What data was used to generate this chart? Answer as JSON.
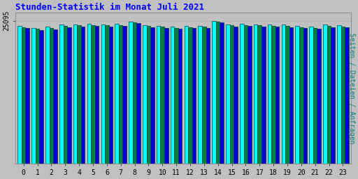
{
  "title": "Stunden-Statistik im Monat Juli 2021",
  "ylabel": "Seiten / Dateien / Anfragen",
  "xlabel_ticks": [
    0,
    1,
    2,
    3,
    4,
    5,
    6,
    7,
    8,
    9,
    10,
    11,
    12,
    13,
    14,
    15,
    16,
    17,
    18,
    19,
    20,
    21,
    22,
    23
  ],
  "ytick_label": "25095",
  "ytick_value": 25095,
  "background_color": "#c0c0c0",
  "plot_background": "#c0c0c0",
  "title_color": "#0000ff",
  "ylabel_color": "#008080",
  "bar_colors": [
    "#00ffff",
    "#008040",
    "#0000dd"
  ],
  "bar_edgecolor": "#004040",
  "seiten": [
    24200,
    23900,
    24050,
    24400,
    24500,
    24550,
    24500,
    24550,
    24900,
    24350,
    24250,
    24100,
    24150,
    24250,
    25095,
    24500,
    24550,
    24500,
    24450,
    24400,
    24200,
    24100,
    24400,
    24350
  ],
  "dateien": [
    24000,
    23700,
    23850,
    24200,
    24300,
    24380,
    24300,
    24380,
    24780,
    24170,
    24050,
    23900,
    23980,
    24070,
    24950,
    24300,
    24350,
    24270,
    24250,
    24200,
    23980,
    23900,
    24200,
    24130
  ],
  "anfragen": [
    23800,
    23500,
    23650,
    23950,
    24100,
    24200,
    24100,
    24180,
    24680,
    23980,
    23850,
    23700,
    23780,
    23900,
    24850,
    24100,
    24200,
    24100,
    24050,
    24000,
    23800,
    23700,
    24000,
    23950
  ],
  "ylim_min": 0,
  "ylim_max": 26500,
  "bar_width": 0.28
}
